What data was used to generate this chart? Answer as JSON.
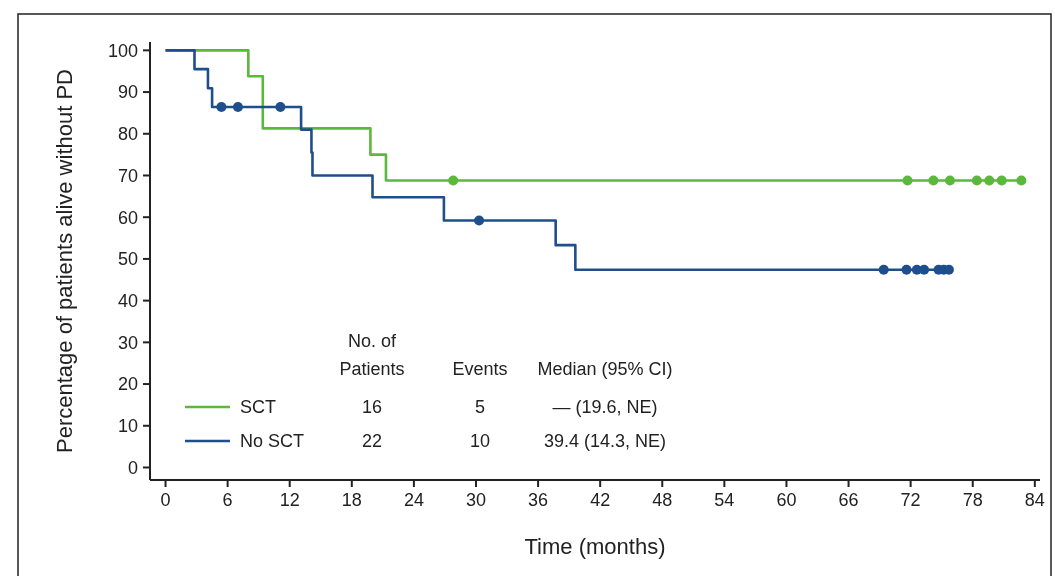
{
  "chart_data": {
    "type": "step",
    "xlabel": "Time (months)",
    "ylabel": "Percentage of patients alive without PD",
    "xlim": [
      -1.5,
      84.5
    ],
    "xticks": [
      0,
      6,
      12,
      18,
      24,
      30,
      36,
      42,
      48,
      54,
      60,
      66,
      72,
      78,
      84
    ],
    "ylim": [
      -3,
      102
    ],
    "yticks": [
      0,
      10,
      20,
      30,
      40,
      50,
      60,
      70,
      80,
      90,
      100
    ],
    "legend": "bottom left",
    "series": [
      {
        "name": "SCT",
        "color": "#5cb83c",
        "x": [
          0,
          8,
          9.4,
          19.8,
          21.3,
          82.7
        ],
        "values": [
          100,
          93.8,
          81.3,
          75,
          68.8,
          68.8
        ]
      },
      {
        "name": "No SCT",
        "color": "#1f4e8c",
        "x": [
          0,
          2.8,
          4.1,
          4.5,
          13.1,
          14.1,
          14.2,
          20,
          26.9,
          37.7,
          39.6,
          75.7
        ],
        "values": [
          100,
          95.5,
          90.9,
          86.4,
          81,
          75.5,
          70,
          64.8,
          59.2,
          53.3,
          47.4,
          47.4
        ]
      },
      {
        "type": "scatter",
        "marker": "circle",
        "color": "#5cb83c",
        "x": [
          27.8,
          71.7,
          74.2,
          75.5,
          75.8,
          78.1,
          78.4,
          79.6,
          80.8,
          82.7
        ],
        "values": [
          68.8,
          68.8,
          68.8,
          null,
          68.8,
          null,
          68.8,
          68.8,
          68.8,
          68.8
        ]
      },
      {
        "type": "scatter",
        "marker": "circle",
        "color": "#1f4e8c",
        "x": [
          5.4,
          7,
          11.1,
          30.3,
          69.4,
          71.6,
          72.6,
          73.3,
          74.7,
          75.2,
          75.7
        ],
        "values": [
          86.4,
          86.4,
          86.4,
          59.2,
          47.4,
          47.4,
          47.4,
          47.4,
          47.4,
          47.4,
          47.4
        ]
      }
    ],
    "annotations": [
      "No. of Patients",
      "Events",
      "Median (95% CI)",
      "16",
      "5",
      "— (19.6, NE)",
      "22",
      "10",
      "39.4 (14.3, NE)"
    ]
  }
}
